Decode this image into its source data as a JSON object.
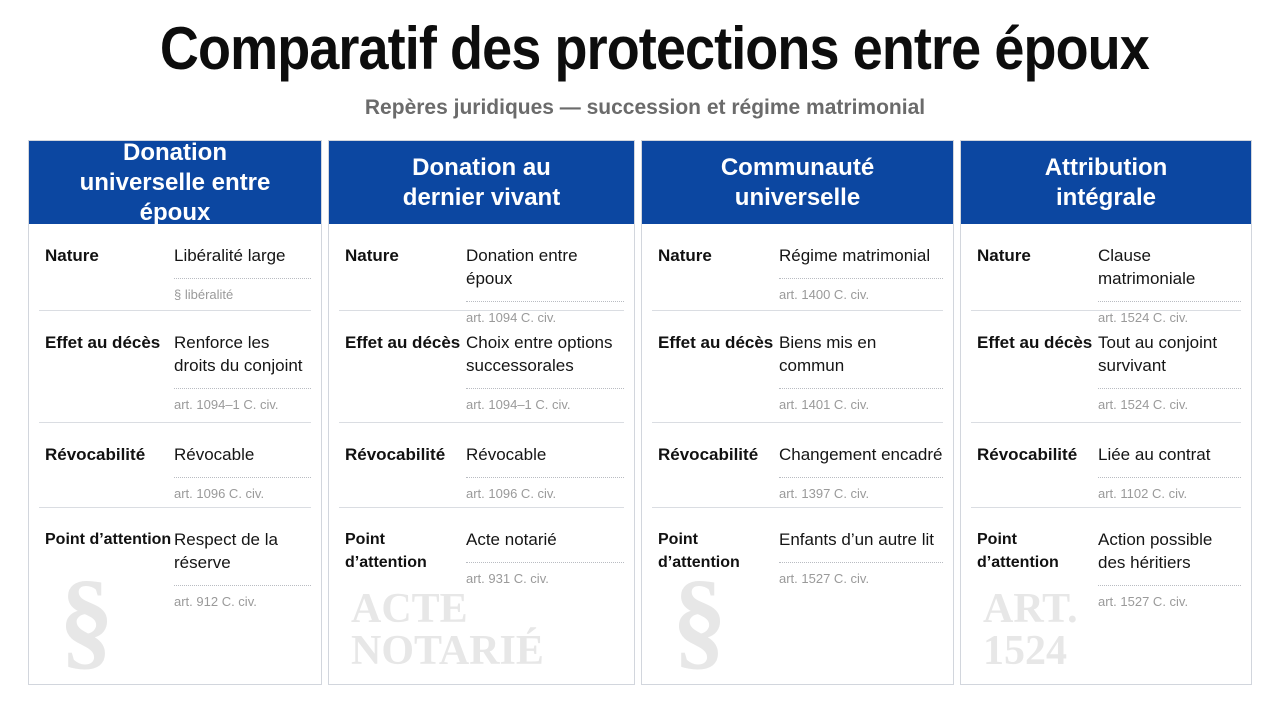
{
  "header": {
    "title": "Comparatif des protections entre époux",
    "subtitle": "Repères juridiques — succession et régime matrimonial"
  },
  "columns": [
    {
      "title": "Donation universelle entre époux",
      "watermark": "§",
      "rows": [
        {
          "label": "Nature",
          "value": "Libéralité large",
          "ref": "§  libéralité"
        },
        {
          "label": "Effet au décès",
          "value": "Renforce les droits du conjoint",
          "ref": "art. 1094–1 C. civ."
        },
        {
          "label": "Révocabilité",
          "value": "Révocable",
          "ref": "art. 1096 C. civ."
        },
        {
          "label": "Point d’attention",
          "value": "Respect de la réserve",
          "ref": "art. 912 C. civ."
        }
      ]
    },
    {
      "title": "Donation au dernier vivant",
      "watermark": "ACTE NOTARIÉ",
      "rows": [
        {
          "label": "Nature",
          "value": "Donation entre époux",
          "ref": "art. 1094 C. civ."
        },
        {
          "label": "Effet au décès",
          "value": "Choix entre options successorales",
          "ref": "art. 1094–1 C. civ."
        },
        {
          "label": "Révocabilité",
          "value": "Révocable",
          "ref": "art. 1096 C. civ."
        },
        {
          "label": "Point d’attention",
          "value": "Acte notarié",
          "ref": "art. 931 C. civ."
        }
      ]
    },
    {
      "title": "Communauté universelle",
      "watermark": "§",
      "rows": [
        {
          "label": "Nature",
          "value": "Régime matrimonial",
          "ref": "art. 1400 C. civ."
        },
        {
          "label": "Effet au décès",
          "value": "Biens mis en commun",
          "ref": "art. 1401 C. civ."
        },
        {
          "label": "Révocabilité",
          "value": "Changement encadré",
          "ref": "art. 1397 C. civ."
        },
        {
          "label": "Point d’attention",
          "value": "Enfants d’un autre lit",
          "ref": "art. 1527 C. civ."
        }
      ]
    },
    {
      "title": "Attribution intégrale",
      "watermark": "ART. 1524",
      "rows": [
        {
          "label": "Nature",
          "value": "Clause matrimoniale",
          "ref": "art. 1524 C. civ."
        },
        {
          "label": "Effet au décès",
          "value": "Tout au conjoint survivant",
          "ref": "art. 1524 C. civ."
        },
        {
          "label": "Révocabilité",
          "value": "Liée au contrat",
          "ref": "art. 1102 C. civ."
        },
        {
          "label": "Point d’attention",
          "value": "Action possible des héritiers",
          "ref": "art. 1527 C. civ."
        }
      ]
    }
  ]
}
